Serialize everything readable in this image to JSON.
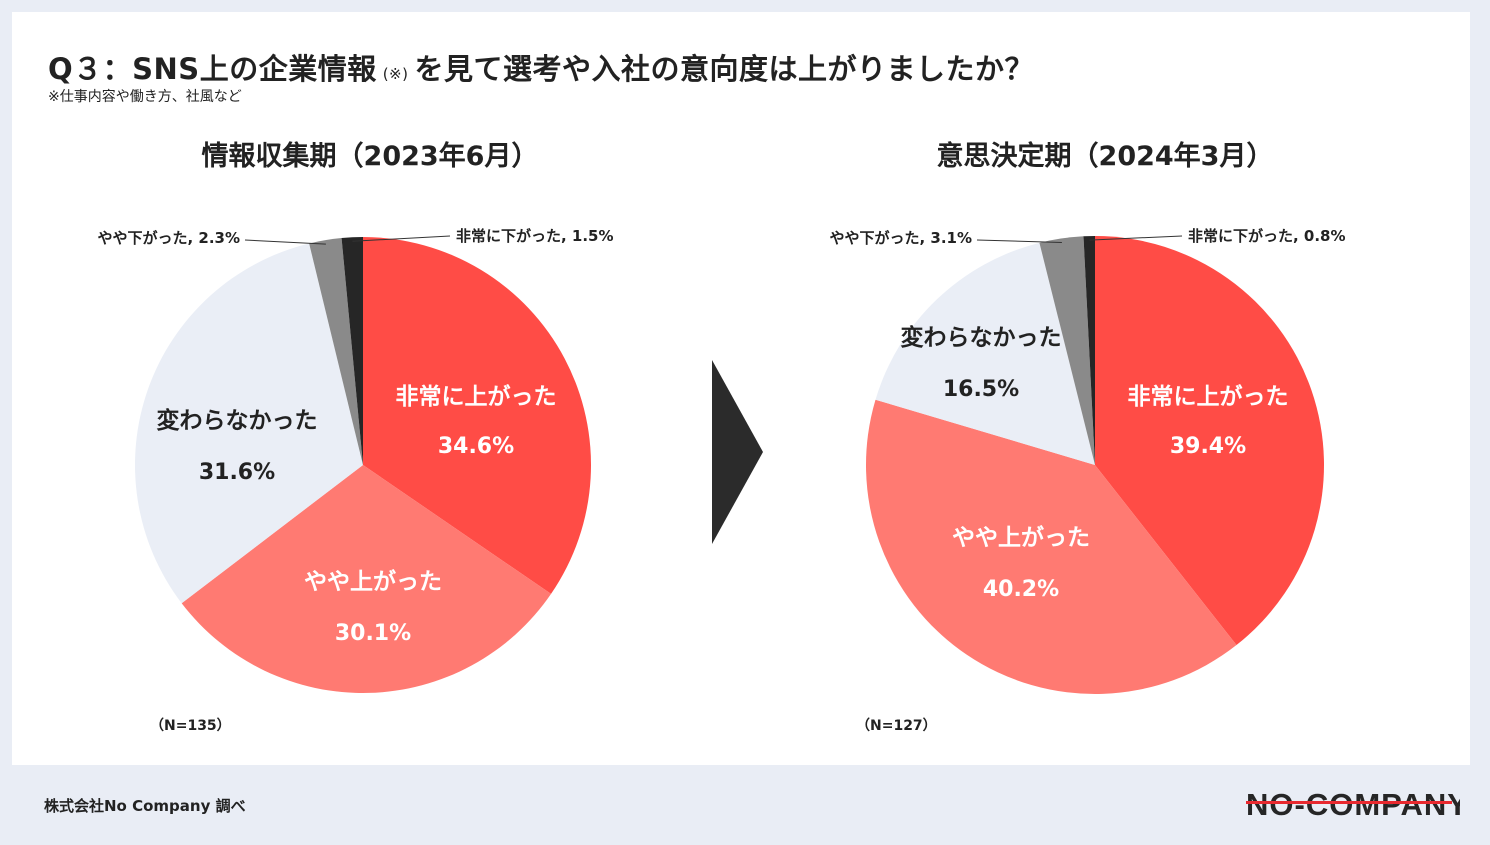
{
  "title": {
    "main": "Q３：SNS上の企業情報",
    "mark": "(※)",
    "rest": "を見て選考や入社の意向度は上がりましたか？"
  },
  "subnote": "※仕事内容や働き方、社風など",
  "footer": {
    "source": "株式会社No Company 調べ",
    "logo_text": "NO-COMPANY"
  },
  "colors": {
    "very_up": "#ff4c46",
    "slightly_up": "#ff7a72",
    "no_change": "#eaeef6",
    "slightly_down": "#8a8a8a",
    "very_down": "#262626",
    "arrow": "#2b2b2b",
    "logo_red": "#e8292f"
  },
  "chart_data": [
    {
      "type": "pie",
      "title": "情報収集期（2023年6月）",
      "n_label": "（N=135）",
      "slices": [
        {
          "label": "非常に上がった",
          "value": 34.6,
          "value_label": "34.6%",
          "color": "#ff4c46"
        },
        {
          "label": "やや上がった",
          "value": 30.1,
          "value_label": "30.1%",
          "color": "#ff7a72"
        },
        {
          "label": "変わらなかった",
          "value": 31.6,
          "value_label": "31.6%",
          "color": "#eaeef6"
        },
        {
          "label": "やや下がった",
          "value": 2.3,
          "value_label": "2.3%",
          "color": "#8a8a8a"
        },
        {
          "label": "非常に下がった",
          "value": 1.5,
          "value_label": "1.5%",
          "color": "#262626"
        }
      ],
      "callouts": [
        "やや下がった, 2.3%",
        "非常に下がった, 1.5%"
      ]
    },
    {
      "type": "pie",
      "title": "意思決定期（2024年3月）",
      "n_label": "（N=127）",
      "slices": [
        {
          "label": "非常に上がった",
          "value": 39.4,
          "value_label": "39.4%",
          "color": "#ff4c46"
        },
        {
          "label": "やや上がった",
          "value": 40.2,
          "value_label": "40.2%",
          "color": "#ff7a72"
        },
        {
          "label": "変わらなかった",
          "value": 16.5,
          "value_label": "16.5%",
          "color": "#eaeef6"
        },
        {
          "label": "やや下がった",
          "value": 3.1,
          "value_label": "3.1%",
          "color": "#8a8a8a"
        },
        {
          "label": "非常に下がった",
          "value": 0.8,
          "value_label": "0.8%",
          "color": "#262626"
        }
      ],
      "callouts": [
        "やや下がった, 3.1%",
        "非常に下がった, 0.8%"
      ]
    }
  ]
}
